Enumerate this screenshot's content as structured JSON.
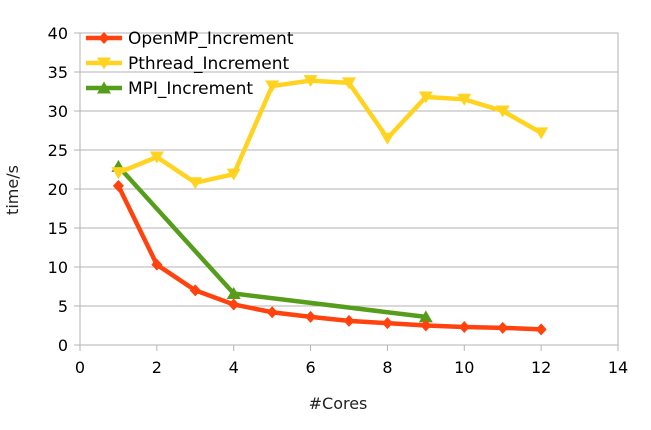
{
  "chart_data": {
    "type": "line",
    "xlabel": "#Cores",
    "ylabel": "time/s",
    "xlim": [
      0,
      14
    ],
    "ylim": [
      0,
      40
    ],
    "x_ticks": [
      0,
      2,
      4,
      6,
      8,
      10,
      12,
      14
    ],
    "y_ticks": [
      0,
      5,
      10,
      15,
      20,
      25,
      30,
      35,
      40
    ],
    "grid": "horizontal",
    "legend_position": "top-left",
    "series": [
      {
        "name": "OpenMP_Increment",
        "color": "#ff420e",
        "marker": "diamond",
        "x": [
          1,
          2,
          3,
          4,
          5,
          6,
          7,
          8,
          9,
          10,
          11,
          12
        ],
        "y": [
          20.4,
          10.3,
          7.0,
          5.2,
          4.2,
          3.6,
          3.1,
          2.8,
          2.5,
          2.3,
          2.2,
          2.0
        ]
      },
      {
        "name": "Pthread_Increment",
        "color": "#ffd320",
        "marker": "triangle-down",
        "x": [
          1,
          2,
          3,
          4,
          5,
          6,
          7,
          8,
          9,
          10,
          11,
          12
        ],
        "y": [
          22.1,
          24.1,
          20.8,
          21.9,
          33.2,
          33.9,
          33.6,
          26.5,
          31.8,
          31.5,
          30.0,
          27.2
        ]
      },
      {
        "name": "MPI_Increment",
        "color": "#579d1c",
        "marker": "triangle-up",
        "x": [
          1,
          4,
          9
        ],
        "y": [
          22.9,
          6.6,
          3.6
        ]
      }
    ]
  }
}
